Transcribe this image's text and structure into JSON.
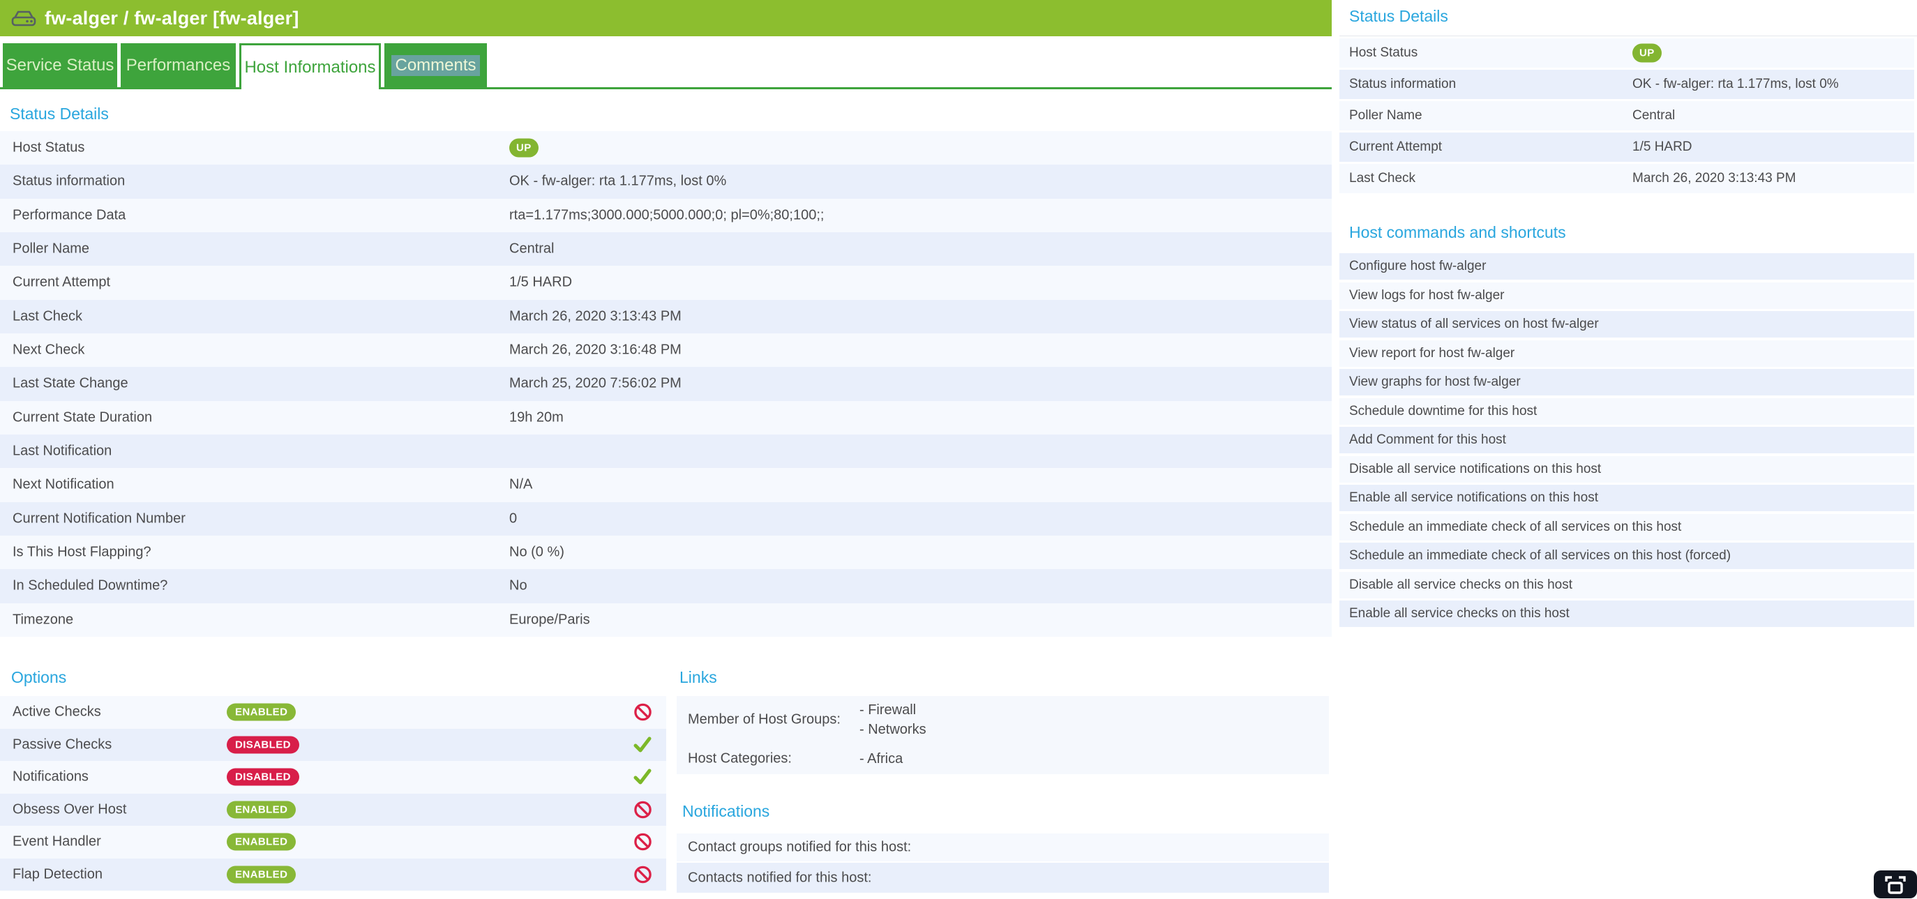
{
  "header": {
    "title": "fw-alger / fw-alger [fw-alger]",
    "icon": "hdd-icon"
  },
  "tabs": [
    {
      "label": "Service Status",
      "active": false,
      "selected": false
    },
    {
      "label": "Performances",
      "active": false,
      "selected": false
    },
    {
      "label": "Host Informations",
      "active": true,
      "selected": false
    },
    {
      "label": "Comments",
      "active": false,
      "selected": true
    }
  ],
  "status_details": {
    "heading": "Status Details",
    "rows": [
      {
        "label": "Host Status",
        "value": "UP",
        "type": "badge"
      },
      {
        "label": "Status information",
        "value": "OK - fw-alger: rta 1.177ms, lost 0%"
      },
      {
        "label": "Performance Data",
        "value": "rta=1.177ms;3000.000;5000.000;0; pl=0%;80;100;;"
      },
      {
        "label": "Poller Name",
        "value": "Central"
      },
      {
        "label": "Current Attempt",
        "value": "1/5 HARD"
      },
      {
        "label": "Last Check",
        "value": "March 26, 2020 3:13:43 PM"
      },
      {
        "label": "Next Check",
        "value": "March 26, 2020 3:16:48 PM"
      },
      {
        "label": "Last State Change",
        "value": "March 25, 2020 7:56:02 PM"
      },
      {
        "label": "Current State Duration",
        "value": "19h 20m"
      },
      {
        "label": "Last Notification",
        "value": ""
      },
      {
        "label": "Next Notification",
        "value": "N/A"
      },
      {
        "label": "Current Notification Number",
        "value": "0"
      },
      {
        "label": "Is This Host Flapping?",
        "value": "No (0 %)"
      },
      {
        "label": "In Scheduled Downtime?",
        "value": "No"
      },
      {
        "label": "Timezone",
        "value": "Europe/Paris"
      }
    ]
  },
  "options": {
    "heading": "Options",
    "rows": [
      {
        "label": "Active Checks",
        "badge": "ENABLED",
        "state": "enabled",
        "icon": "prohibited-icon"
      },
      {
        "label": "Passive Checks",
        "badge": "DISABLED",
        "state": "disabled",
        "icon": "check-icon"
      },
      {
        "label": "Notifications",
        "badge": "DISABLED",
        "state": "disabled",
        "icon": "check-icon"
      },
      {
        "label": "Obsess Over Host",
        "badge": "ENABLED",
        "state": "enabled",
        "icon": "prohibited-icon"
      },
      {
        "label": "Event Handler",
        "badge": "ENABLED",
        "state": "enabled",
        "icon": "prohibited-icon"
      },
      {
        "label": "Flap Detection",
        "badge": "ENABLED",
        "state": "enabled",
        "icon": "prohibited-icon"
      }
    ]
  },
  "links": {
    "heading": "Links",
    "rows": [
      {
        "label": "Member of Host Groups:",
        "values": [
          "- Firewall",
          "- Networks"
        ]
      },
      {
        "label": "Host Categories:",
        "values": [
          "- Africa"
        ]
      }
    ]
  },
  "notifications": {
    "heading": "Notifications",
    "rows": [
      {
        "label": "Contact groups notified for this host:"
      },
      {
        "label": "Contacts notified for this host:"
      }
    ]
  },
  "side_panel": {
    "heading": "Status Details",
    "rows": [
      {
        "label": "Host Status",
        "value": "UP",
        "type": "badge"
      },
      {
        "label": "Status information",
        "value": "OK - fw-alger: rta 1.177ms, lost 0%"
      },
      {
        "label": "Poller Name",
        "value": "Central"
      },
      {
        "label": "Current Attempt",
        "value": "1/5 HARD"
      },
      {
        "label": "Last Check",
        "value": "March 26, 2020 3:13:43 PM"
      }
    ],
    "commands_heading": "Host commands and shortcuts",
    "commands": [
      "Configure host fw-alger",
      "View logs for host fw-alger",
      "View status of all services on host fw-alger",
      "View report for host fw-alger",
      "View graphs for host fw-alger",
      "Schedule downtime for this host",
      "Add Comment for this host",
      "Disable all service notifications on this host",
      "Enable all service notifications on this host",
      "Schedule an immediate check of all services on this host",
      "Schedule an immediate check of all services on this host (forced)",
      "Disable all service checks on this host",
      "Enable all service checks on this host"
    ]
  },
  "footer": {
    "fullscreen_icon": "fullscreen-icon"
  },
  "colors": {
    "header_green": "#8CBE2F",
    "tab_green": "#3EA43C",
    "heading_blue": "#29A6DE",
    "badge_up": "#83B531",
    "badge_enabled": "#88B837",
    "badge_disabled": "#D81E49",
    "check_green": "#7CB828",
    "prohibited_red": "#DC2148",
    "row_light": "#F6F9FE",
    "row_dark": "#E9EFFB",
    "selection_teal": "#68A39E"
  }
}
